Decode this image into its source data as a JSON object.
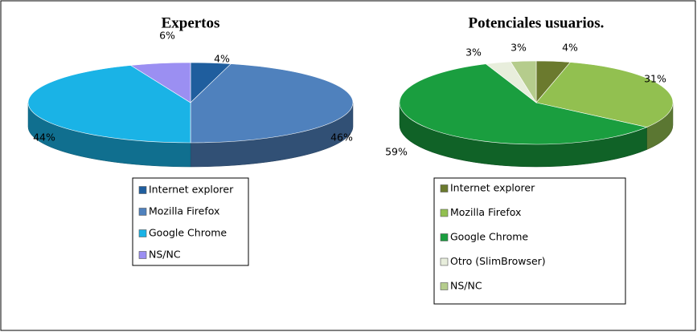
{
  "chart_data": [
    {
      "type": "pie3d",
      "title": "Expertos",
      "categories": [
        "Internet explorer",
        "Mozilla Firefox",
        "Google Chrome",
        "NS/NC"
      ],
      "values": [
        4,
        46,
        44,
        6
      ],
      "value_labels": [
        "4%",
        "46%",
        "44%",
        "6%"
      ],
      "colors": [
        "#1f5e9e",
        "#4f81bd",
        "#1ab3e6",
        "#9b8ff2"
      ]
    },
    {
      "type": "pie3d",
      "title": "Potenciales usuarios.",
      "categories": [
        "Internet explorer",
        "Mozilla Firefox",
        "Google Chrome",
        "Otro (SlimBrowser)",
        "NS/NC"
      ],
      "values": [
        4,
        31,
        59,
        3,
        3
      ],
      "value_labels": [
        "4%",
        "31%",
        "59%",
        "3%",
        "3%"
      ],
      "colors": [
        "#6b7a2e",
        "#92c050",
        "#1a9e3f",
        "#e8eedc",
        "#b5cc8c"
      ]
    }
  ]
}
